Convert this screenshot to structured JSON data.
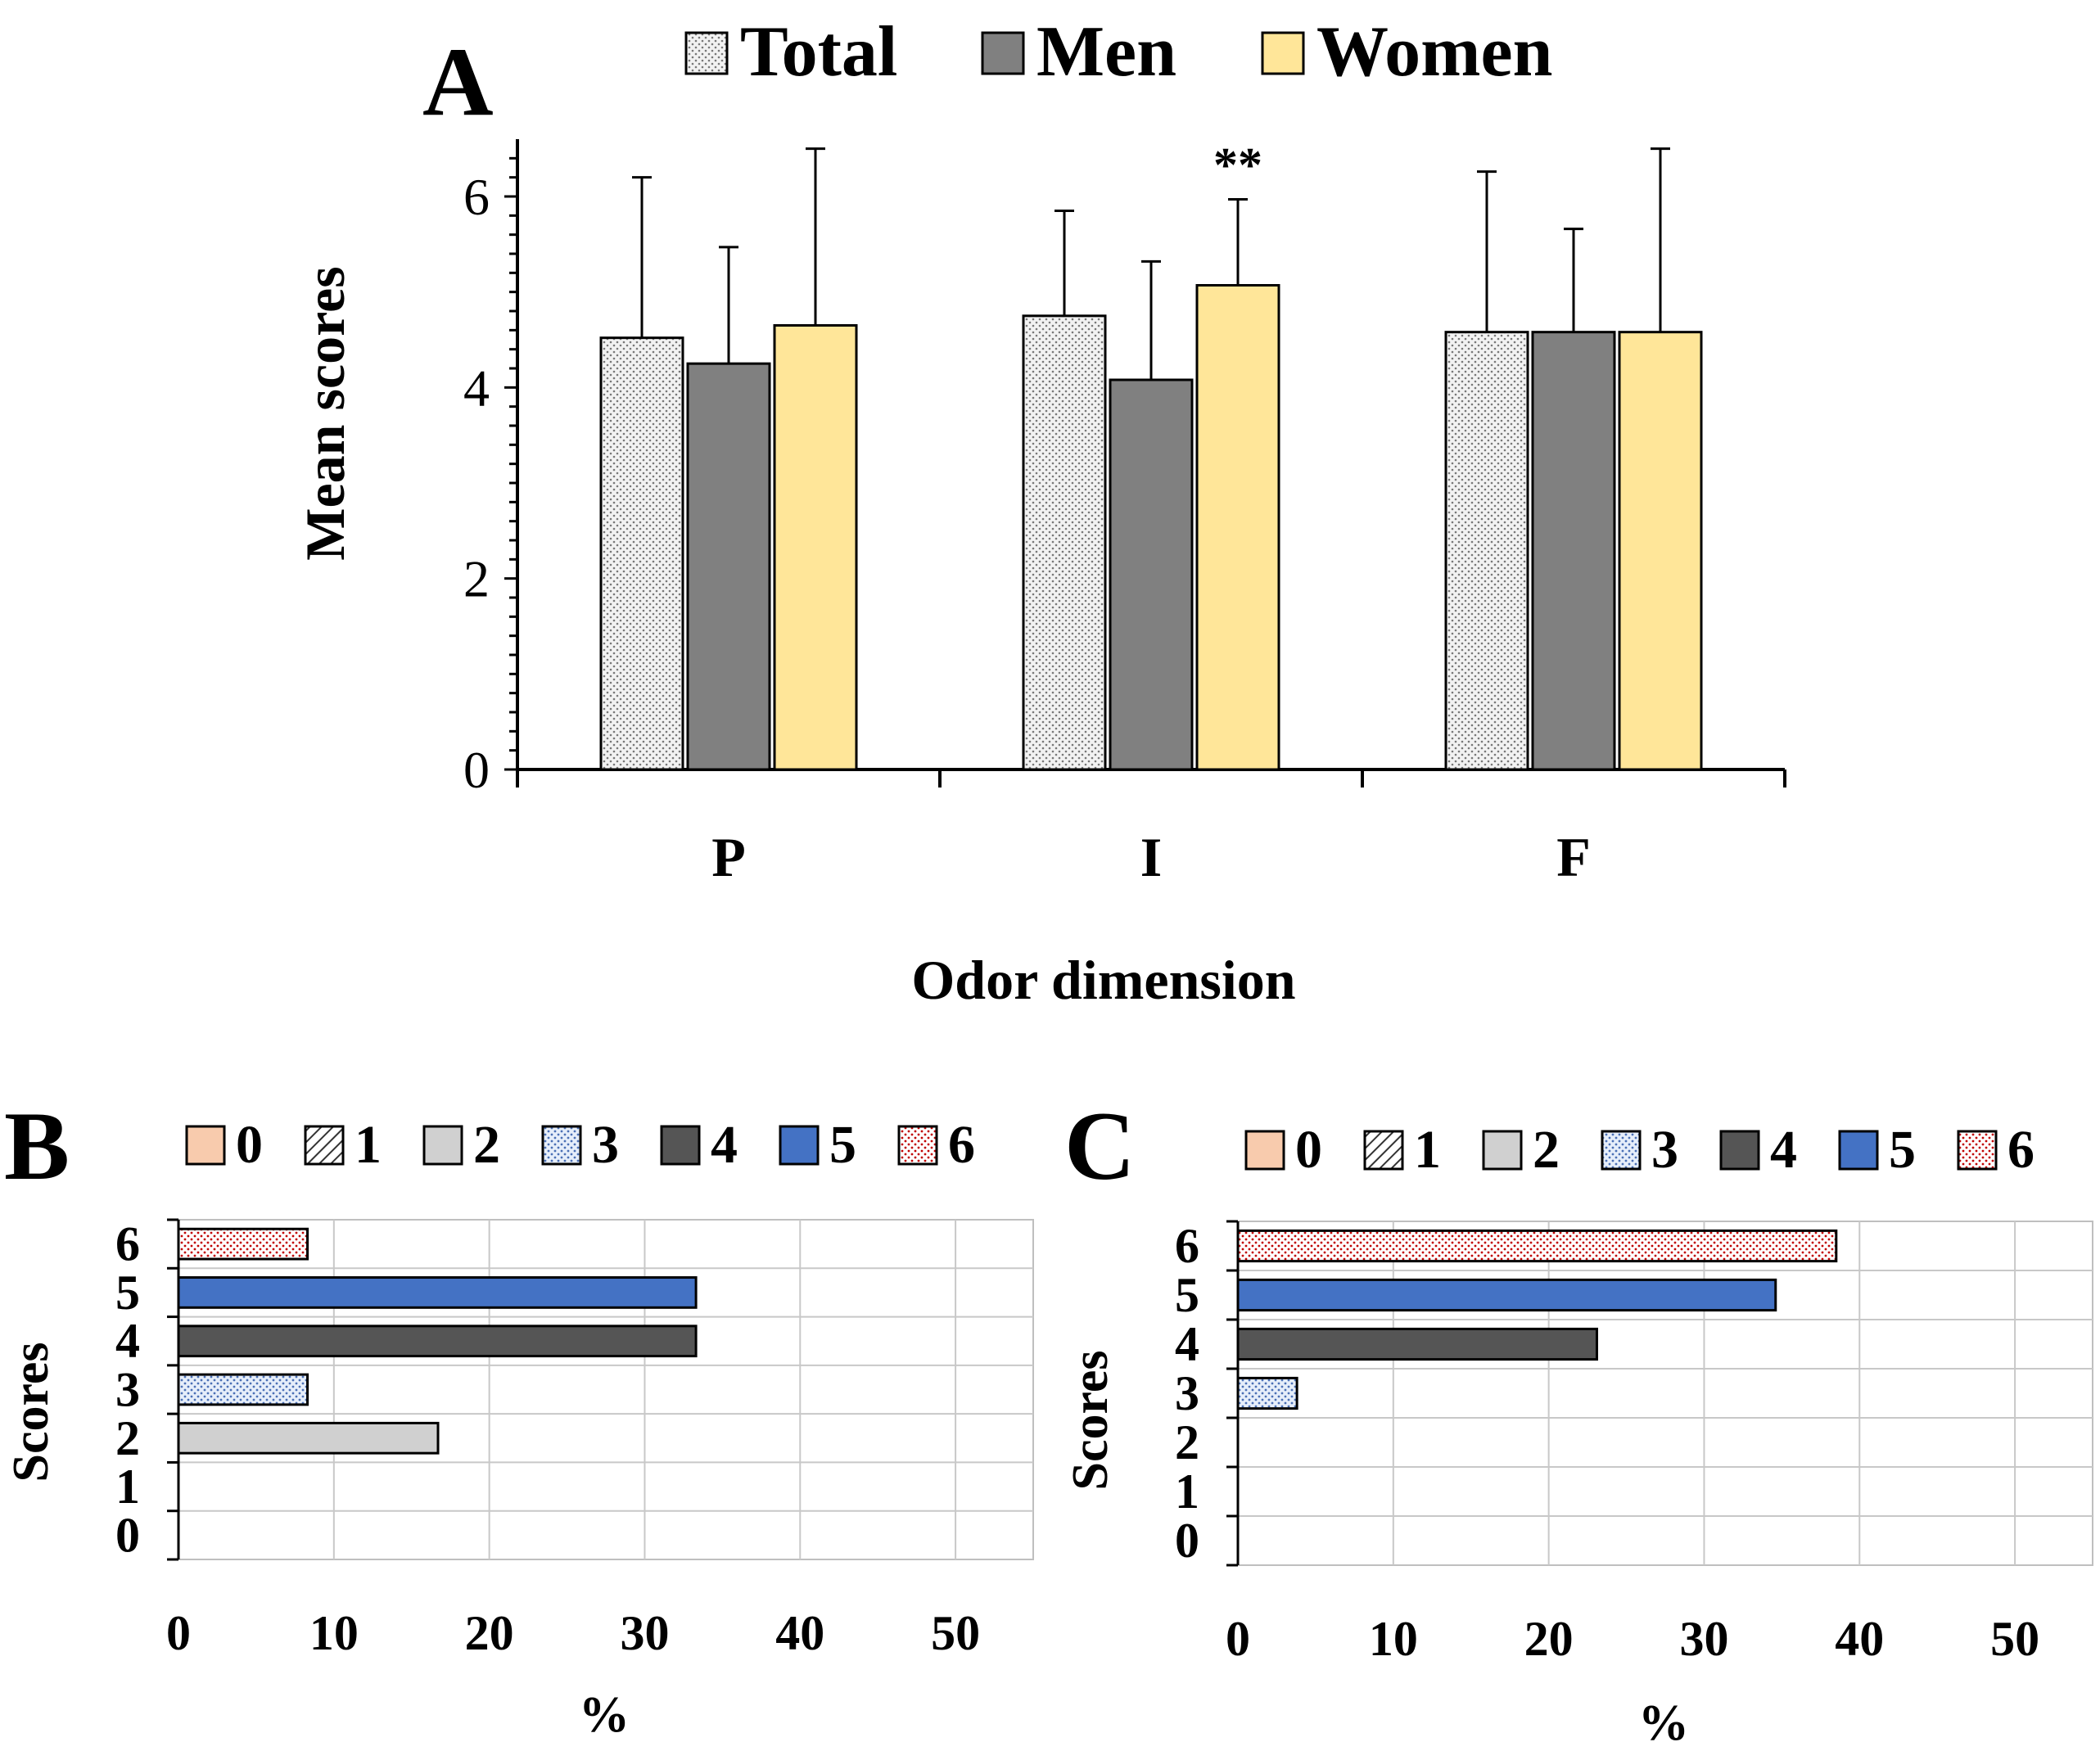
{
  "chart_data": [
    {
      "panel": "A",
      "type": "bar",
      "categories": [
        "P",
        "I",
        "F"
      ],
      "series": [
        {
          "name": "Total",
          "values": [
            4.52,
            4.75,
            4.58
          ],
          "errors": [
            1.68,
            1.1,
            1.68
          ],
          "color": "#e6e6e6",
          "pattern": "dots"
        },
        {
          "name": "Men",
          "values": [
            4.25,
            4.08,
            4.58
          ],
          "errors": [
            1.22,
            1.24,
            1.08
          ],
          "color": "#808080",
          "pattern": "solid"
        },
        {
          "name": "Women",
          "values": [
            4.65,
            5.07,
            4.58
          ],
          "errors": [
            1.85,
            0.9,
            1.92
          ],
          "color": "#ffe699",
          "pattern": "solid"
        }
      ],
      "annotation": {
        "text": "**",
        "category": "I",
        "series": "Women"
      },
      "xlabel": "Odor dimension",
      "ylabel": "Mean scores",
      "yticks": [
        "0",
        "2",
        "4",
        "6"
      ],
      "ylim": [
        0,
        6.6
      ],
      "legend": "top"
    },
    {
      "panel": "B",
      "type": "bar",
      "orientation": "horizontal",
      "categories": [
        "0",
        "1",
        "2",
        "3",
        "4",
        "5",
        "6"
      ],
      "values": [
        0,
        0,
        16.7,
        8.3,
        33.3,
        33.3,
        8.3
      ],
      "xlabel": "%",
      "ylabel": "Scores",
      "xticks": [
        "0",
        "10",
        "20",
        "30",
        "40",
        "50"
      ],
      "xlim": [
        0,
        55
      ],
      "legend": "top",
      "legend_entries": [
        "0",
        "1",
        "2",
        "3",
        "4",
        "5",
        "6"
      ]
    },
    {
      "panel": "C",
      "type": "bar",
      "orientation": "horizontal",
      "categories": [
        "0",
        "1",
        "2",
        "3",
        "4",
        "5",
        "6"
      ],
      "values": [
        0,
        0,
        0,
        3.8,
        23.1,
        34.6,
        38.5
      ],
      "xlabel": "%",
      "ylabel": "Scores",
      "xticks": [
        "0",
        "10",
        "20",
        "30",
        "40",
        "50"
      ],
      "xlim": [
        0,
        55
      ],
      "legend": "top",
      "legend_entries": [
        "0",
        "1",
        "2",
        "3",
        "4",
        "5",
        "6"
      ]
    }
  ],
  "score_styles": [
    {
      "label": "0",
      "color": "#f8cbad",
      "pattern": "solid"
    },
    {
      "label": "1",
      "color": "#ffffff",
      "pattern": "hatch"
    },
    {
      "label": "2",
      "color": "#d0d0d0",
      "pattern": "solid"
    },
    {
      "label": "3",
      "color": "#dae8f8",
      "pattern": "bluedots"
    },
    {
      "label": "4",
      "color": "#555555",
      "pattern": "solid"
    },
    {
      "label": "5",
      "color": "#4472c4",
      "pattern": "solid"
    },
    {
      "label": "6",
      "color": "#ffffff",
      "pattern": "reddots"
    }
  ]
}
